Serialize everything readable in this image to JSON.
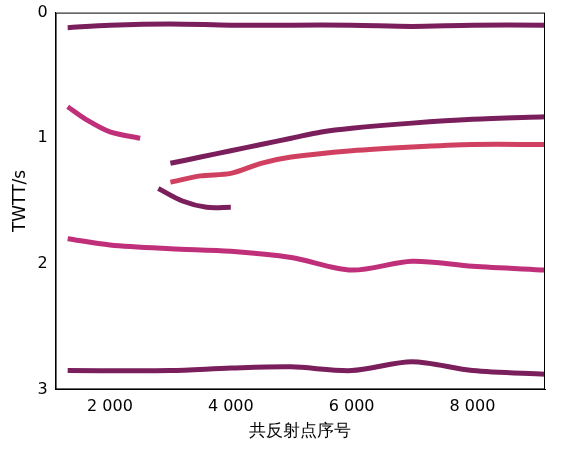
{
  "chart_data": {
    "type": "line",
    "x_label": "共反射点序号",
    "y_label": "TWTT/s",
    "xlim": [
      1100,
      9200
    ],
    "xticks": [
      {
        "value": 2000,
        "label": "2 000"
      },
      {
        "value": 4000,
        "label": "4 000"
      },
      {
        "value": 6000,
        "label": "6 000"
      },
      {
        "value": 8000,
        "label": "8 000"
      }
    ],
    "ylim": [
      3,
      0
    ],
    "yticks": [
      0,
      1,
      2,
      3
    ],
    "grid": false,
    "series": [
      {
        "color": "#7a1f5c",
        "x": [
          1300,
          2000,
          3000,
          4000,
          5000,
          6000,
          7000,
          8000,
          9200
        ],
        "values": [
          0.12,
          0.1,
          0.09,
          0.1,
          0.1,
          0.1,
          0.11,
          0.1,
          0.1
        ]
      },
      {
        "color": "#c0307a",
        "x": [
          1300,
          1600,
          2000,
          2500
        ],
        "values": [
          0.75,
          0.85,
          0.95,
          1.0
        ]
      },
      {
        "color": "#7a1f5c",
        "x": [
          3000,
          3500,
          4000,
          4500,
          5000,
          5500,
          6000,
          7000,
          8000,
          9200
        ],
        "values": [
          1.2,
          1.15,
          1.1,
          1.05,
          1.0,
          0.95,
          0.92,
          0.88,
          0.85,
          0.83
        ]
      },
      {
        "color": "#d04060",
        "x": [
          3000,
          3500,
          4000,
          4500,
          5000,
          6000,
          7000,
          8000,
          9200
        ],
        "values": [
          1.35,
          1.3,
          1.28,
          1.2,
          1.15,
          1.1,
          1.07,
          1.05,
          1.05
        ]
      },
      {
        "color": "#7a1f5c",
        "x": [
          2800,
          3200,
          3600,
          4000
        ],
        "values": [
          1.4,
          1.5,
          1.55,
          1.55
        ]
      },
      {
        "color": "#c0307a",
        "x": [
          1300,
          2000,
          3000,
          4000,
          5000,
          6000,
          7000,
          8000,
          9200
        ],
        "values": [
          1.8,
          1.85,
          1.88,
          1.9,
          1.95,
          2.05,
          1.98,
          2.02,
          2.05
        ]
      },
      {
        "color": "#7a1f5c",
        "x": [
          1300,
          3000,
          4000,
          5000,
          6000,
          7000,
          8000,
          9200
        ],
        "values": [
          2.85,
          2.85,
          2.83,
          2.82,
          2.85,
          2.78,
          2.85,
          2.88
        ]
      }
    ]
  }
}
